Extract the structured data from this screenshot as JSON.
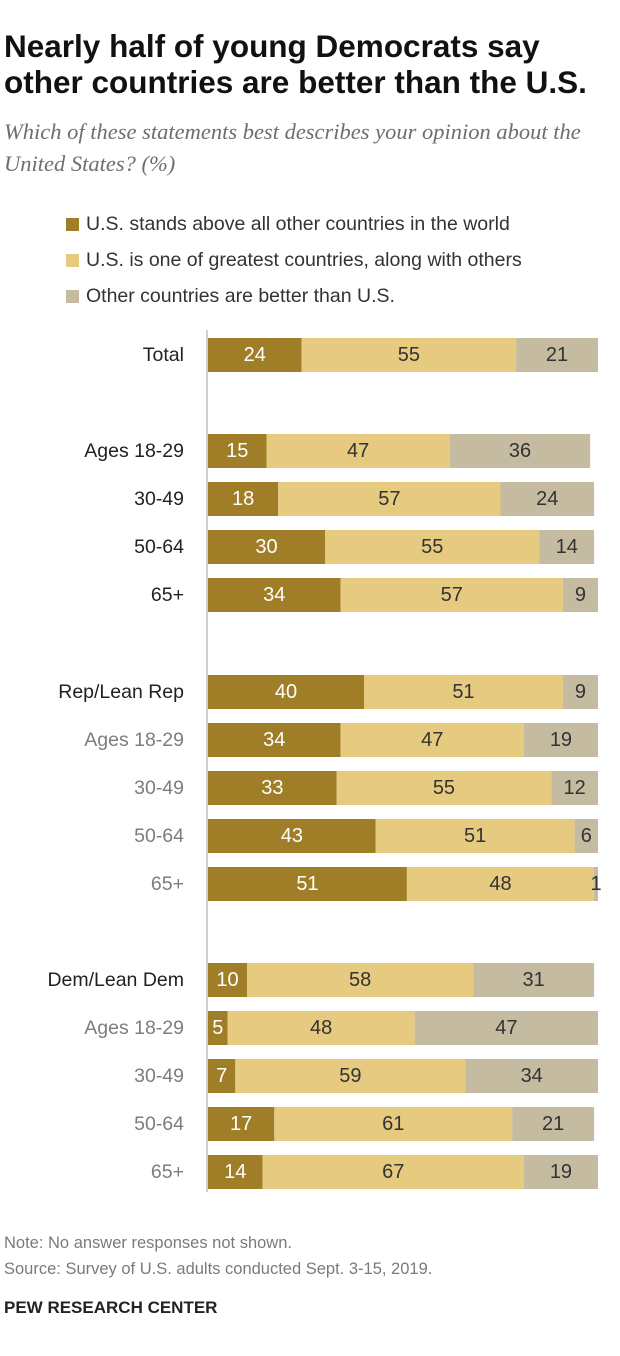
{
  "title": "Nearly half of young Democrats say other countries are better than the U.S.",
  "subtitle": "Which of these statements best describes your opinion about the United States? (%)",
  "note": "Note: No answer responses not shown.",
  "source": "Source: Survey of U.S. adults conducted Sept. 3-15, 2019.",
  "brand": "PEW RESEARCH CENTER",
  "colors": {
    "above_all": "#a07d27",
    "one_of_greatest": "#e5ca7f",
    "others_better": "#c5bba0",
    "label_primary": "#222222",
    "label_secondary": "#7d7d7d"
  },
  "chart_data": {
    "type": "bar",
    "orientation": "horizontal",
    "stacked": true,
    "xlim": [
      0,
      100
    ],
    "categories": [
      "Total",
      "Ages 18-29",
      "30-49",
      "50-64",
      "65+",
      "Rep/Lean Rep",
      "Ages 18-29",
      "30-49",
      "50-64",
      "65+",
      "Dem/Lean Dem",
      "Ages 18-29",
      "30-49",
      "50-64",
      "65+"
    ],
    "category_style": [
      "primary",
      "primary",
      "primary",
      "primary",
      "primary",
      "primary",
      "secondary",
      "secondary",
      "secondary",
      "secondary",
      "primary",
      "secondary",
      "secondary",
      "secondary",
      "secondary"
    ],
    "series": [
      {
        "name": "U.S. stands above all other countries in the world",
        "values": [
          24,
          15,
          18,
          30,
          34,
          40,
          34,
          33,
          43,
          51,
          10,
          5,
          7,
          17,
          14
        ]
      },
      {
        "name": "U.S. is one of greatest countries, along with others",
        "values": [
          55,
          47,
          57,
          55,
          57,
          51,
          47,
          55,
          51,
          48,
          58,
          48,
          59,
          61,
          67
        ]
      },
      {
        "name": "Other countries are better than U.S.",
        "values": [
          21,
          36,
          24,
          14,
          9,
          9,
          19,
          12,
          6,
          1,
          31,
          47,
          34,
          21,
          19
        ]
      }
    ],
    "legend_position": "top-left",
    "grid": false
  }
}
